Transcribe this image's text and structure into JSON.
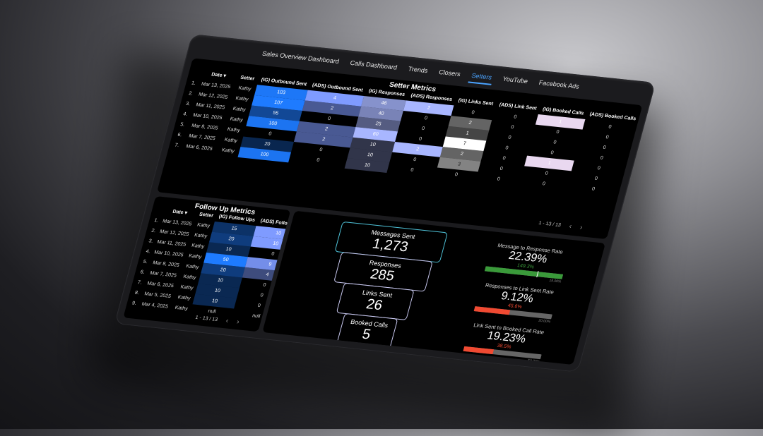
{
  "nav": {
    "tabs": [
      "Sales Overview Dashboard",
      "Calls Dashboard",
      "Trends",
      "Closers",
      "Setters",
      "YouTube",
      "Facebook Ads"
    ],
    "active": "Setters"
  },
  "setter_metrics": {
    "title": "Setter Metrics",
    "columns": [
      "Date ▾",
      "Setter",
      "(IG) Outbound Sent",
      "(ADS) Outbound Sent",
      "(IG) Responses",
      "(ADS) Responses",
      "(IG) Links Sent",
      "(ADS) Link Sent",
      "(IG) Booked Calls",
      "(ADS) Booked Calls"
    ],
    "rows": [
      {
        "idx": "1.",
        "date": "Mar 13, 2025",
        "setter": "Kathy",
        "vals": [
          "103",
          "4",
          "46",
          "2",
          "0",
          "0",
          "1",
          "0"
        ]
      },
      {
        "idx": "2.",
        "date": "Mar 12, 2025",
        "setter": "Kathy",
        "vals": [
          "107",
          "2",
          "40",
          "0",
          "2",
          "0",
          "0",
          "0"
        ]
      },
      {
        "idx": "3.",
        "date": "Mar 11, 2025",
        "setter": "Kathy",
        "vals": [
          "55",
          "0",
          "25",
          "0",
          "1",
          "0",
          "0",
          "0"
        ]
      },
      {
        "idx": "4.",
        "date": "Mar 10, 2025",
        "setter": "Kathy",
        "vals": [
          "100",
          "2",
          "60",
          "0",
          "7",
          "0",
          "0",
          "0"
        ]
      },
      {
        "idx": "5.",
        "date": "Mar 8, 2025",
        "setter": "Kathy",
        "vals": [
          "0",
          "2",
          "10",
          "2",
          "2",
          "0",
          "1",
          "0"
        ]
      },
      {
        "idx": "6.",
        "date": "Mar 7, 2025",
        "setter": "Kathy",
        "vals": [
          "20",
          "0",
          "10",
          "0",
          "3",
          "0",
          "0",
          "0"
        ]
      },
      {
        "idx": "7.",
        "date": "Mar 6, 2025",
        "setter": "Kathy",
        "vals": [
          "100",
          "0",
          "10",
          "0",
          "0",
          "0",
          "0",
          "0"
        ]
      }
    ],
    "pager": "1 - 13 / 13"
  },
  "follow_up": {
    "title": "Follow Up Metrics",
    "columns": [
      "Date ▾",
      "Setter",
      "(IG) Follow Ups",
      "(ADS) Follow Ups"
    ],
    "rows": [
      {
        "idx": "1.",
        "date": "Mar 13, 2025",
        "setter": "Kathy",
        "vals": [
          "15",
          "10"
        ]
      },
      {
        "idx": "2.",
        "date": "Mar 12, 2025",
        "setter": "Kathy",
        "vals": [
          "20",
          "10"
        ]
      },
      {
        "idx": "3.",
        "date": "Mar 11, 2025",
        "setter": "Kathy",
        "vals": [
          "10",
          "0"
        ]
      },
      {
        "idx": "4.",
        "date": "Mar 10, 2025",
        "setter": "Kathy",
        "vals": [
          "50",
          "9"
        ]
      },
      {
        "idx": "5.",
        "date": "Mar 8, 2025",
        "setter": "Kathy",
        "vals": [
          "20",
          "4"
        ]
      },
      {
        "idx": "6.",
        "date": "Mar 7, 2025",
        "setter": "Kathy",
        "vals": [
          "10",
          "0"
        ]
      },
      {
        "idx": "7.",
        "date": "Mar 6, 2025",
        "setter": "Kathy",
        "vals": [
          "10",
          "0"
        ]
      },
      {
        "idx": "8.",
        "date": "Mar 5, 2025",
        "setter": "Kathy",
        "vals": [
          "10",
          "0"
        ]
      },
      {
        "idx": "9.",
        "date": "Mar 4, 2025",
        "setter": "Kathy",
        "vals": [
          "null",
          "null"
        ]
      }
    ],
    "pager": "1 - 13 / 13"
  },
  "funnel": [
    {
      "label": "Messages Sent",
      "value": "1,273"
    },
    {
      "label": "Responses",
      "value": "285"
    },
    {
      "label": "Links Sent",
      "value": "26"
    },
    {
      "label": "Booked Calls",
      "value": "5"
    }
  ],
  "kpis": [
    {
      "title": "Message to Response Rate",
      "value": "22.39%",
      "sub": "149.3%",
      "target": "15.00%",
      "progress": 1.0,
      "color": "#3a9a3a",
      "subcolor": "#3a9a3a"
    },
    {
      "title": "Responses to Link Sent Rate",
      "value": "9.12%",
      "sub": "45.6%",
      "target": "20.00%",
      "progress": 0.456,
      "color": "#f04a32",
      "subcolor": "#f04a32"
    },
    {
      "title": "Link Sent to Booked Call Rate",
      "value": "19.23%",
      "sub": "38.5%",
      "target": "50.00%",
      "progress": 0.385,
      "color": "#f04a32",
      "subcolor": "#f04a32"
    }
  ],
  "colors": {
    "ig_scale": "#1e7bff",
    "ads_scale": "#7f9bff",
    "responses_scale": "#a8b6ff",
    "links_scale": "#ffffff",
    "booked_scale": "#e9d8f0"
  }
}
